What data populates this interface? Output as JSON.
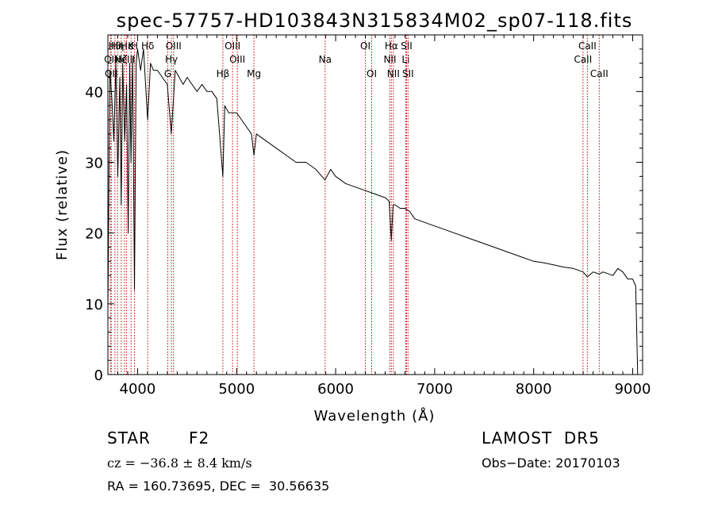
{
  "chart_data": {
    "type": "line",
    "title": "spec-57757-HD103843N315834M02_sp07-118.fits",
    "xlabel": "Wavelength (Å)",
    "ylabel": "Flux (relative)",
    "xlim": [
      3700,
      9100
    ],
    "ylim": [
      0,
      48
    ],
    "xticks": [
      4000,
      5000,
      6000,
      7000,
      8000,
      9000
    ],
    "yticks": [
      0,
      10,
      20,
      30,
      40
    ],
    "grid": false,
    "series": [
      {
        "x": [
          3700,
          3720,
          3740,
          3760,
          3780,
          3800,
          3820,
          3835,
          3850,
          3870,
          3889,
          3905,
          3920,
          3933,
          3950,
          3968,
          3985,
          4000,
          4030,
          4060,
          4101,
          4130,
          4160,
          4200,
          4250,
          4300,
          4340,
          4380,
          4420,
          4460,
          4500,
          4550,
          4600,
          4650,
          4700,
          4750,
          4800,
          4861,
          4880,
          4920,
          4960,
          5000,
          5050,
          5100,
          5150,
          5175,
          5200,
          5300,
          5400,
          5500,
          5600,
          5700,
          5800,
          5893,
          5950,
          6000,
          6100,
          6200,
          6300,
          6400,
          6500,
          6540,
          6563,
          6580,
          6600,
          6650,
          6700,
          6750,
          6800,
          6900,
          7000,
          7100,
          7200,
          7300,
          7400,
          7500,
          7600,
          7700,
          7800,
          7900,
          8000,
          8100,
          8200,
          8300,
          8400,
          8498,
          8542,
          8600,
          8662,
          8700,
          8800,
          8850,
          8900,
          8950,
          9000,
          9030,
          9050
        ],
        "y": [
          9,
          43,
          39,
          33,
          44,
          28,
          42,
          24,
          44,
          33,
          41,
          20,
          44,
          30,
          45,
          12,
          44,
          46,
          43,
          46,
          36,
          44,
          43,
          43,
          42,
          41,
          34,
          43,
          42,
          41,
          42,
          41,
          40,
          41,
          40,
          40,
          39,
          28,
          38,
          37,
          37,
          37,
          36,
          35,
          34,
          31,
          34,
          33,
          32,
          31,
          30,
          30,
          29,
          27.5,
          29,
          28,
          27,
          26.5,
          26,
          25.5,
          25,
          24.5,
          19,
          24,
          24,
          23.5,
          23.5,
          23,
          22,
          21.5,
          21,
          20.5,
          20,
          19.5,
          19,
          18.5,
          18,
          17.5,
          17,
          16.5,
          16,
          15.8,
          15.5,
          15.2,
          15,
          14.5,
          13.8,
          14.5,
          14.2,
          14.5,
          14,
          15,
          14.5,
          13.5,
          13.5,
          12.5,
          0
        ]
      }
    ],
    "lines": [
      {
        "x": 3727,
        "label": "OII",
        "row": 2
      },
      {
        "x": 3734,
        "label": "OII",
        "row": 3
      },
      {
        "x": 3771,
        "label": "Hθ",
        "row": 1
      },
      {
        "x": 3798,
        "label": "Hη",
        "row": 1
      },
      {
        "x": 3835,
        "label": "Hζ",
        "row": 2
      },
      {
        "x": 3869,
        "label": "NeIII",
        "row": 2
      },
      {
        "x": 3889,
        "label": "Hε",
        "row": 1
      },
      {
        "x": 3934,
        "label": "K",
        "row": 1
      },
      {
        "x": 3969,
        "label": "H",
        "row": 1
      },
      {
        "x": 4102,
        "label": "Hδ",
        "row": 1
      },
      {
        "x": 4305,
        "label": "G",
        "row": 3
      },
      {
        "x": 4341,
        "label": "Hγ",
        "row": 2
      },
      {
        "x": 4363,
        "label": "OIII",
        "row": 1
      },
      {
        "x": 4861,
        "label": "Hβ",
        "row": 3
      },
      {
        "x": 4959,
        "label": "OIII",
        "row": 1
      },
      {
        "x": 5007,
        "label": "OIII",
        "row": 2
      },
      {
        "x": 5175,
        "label": "Mg",
        "row": 3
      },
      {
        "x": 5894,
        "label": "Na",
        "row": 2
      },
      {
        "x": 6300,
        "label": "OI",
        "row": 1
      },
      {
        "x": 6364,
        "label": "OI",
        "row": 3
      },
      {
        "x": 6548,
        "label": "NII",
        "row": 2
      },
      {
        "x": 6563,
        "label": "Hα",
        "row": 1
      },
      {
        "x": 6583,
        "label": "NII",
        "row": 3
      },
      {
        "x": 6708,
        "label": "Li",
        "row": 2
      },
      {
        "x": 6716,
        "label": "SII",
        "row": 1
      },
      {
        "x": 6731,
        "label": "SII",
        "row": 3
      },
      {
        "x": 8498,
        "label": "CaII",
        "row": 2
      },
      {
        "x": 8542,
        "label": "CaII",
        "row": 1
      },
      {
        "x": 8662,
        "label": "CaII",
        "row": 3
      }
    ]
  },
  "info": {
    "class": "STAR",
    "subclass": "F2",
    "survey": "LAMOST  DR5",
    "cz": "cz = −36.8 ± 8.4 km/s",
    "obs_date": "Obs−Date: 20170103",
    "coords": "RA = 160.73695, DEC =  30.56635"
  },
  "colors": {
    "spectrum": "#000000",
    "line_markers": "#cc0000",
    "background": "#ffffff"
  }
}
